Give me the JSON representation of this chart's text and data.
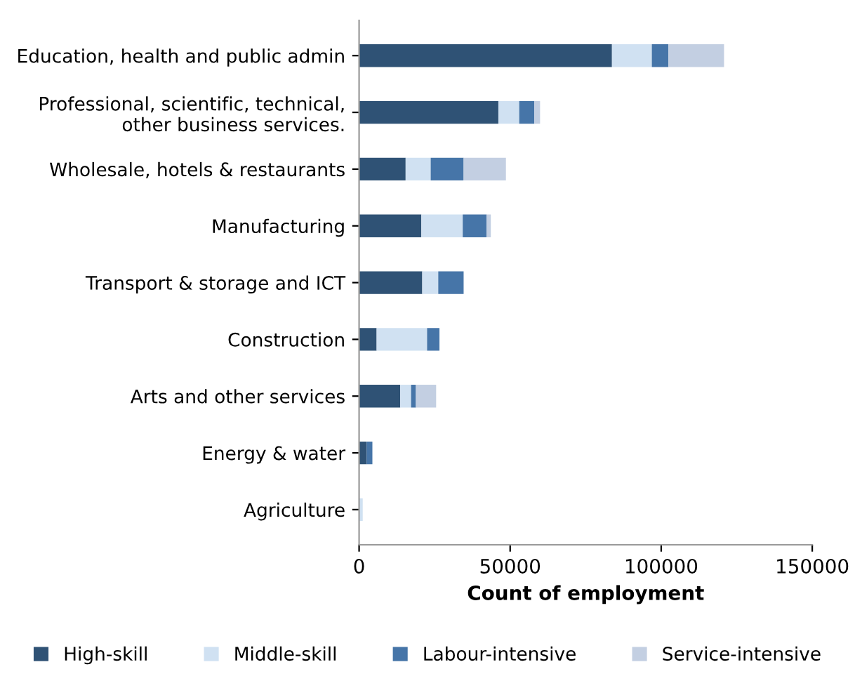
{
  "chart_data": {
    "type": "bar",
    "orientation": "horizontal",
    "stacked": true,
    "xlabel": "Count of employment",
    "categories": [
      "Education, health and public admin",
      "Professional, scientific, technical,\nother business services.",
      "Wholesale, hotels & restaurants",
      "Manufacturing",
      "Transport & storage and ICT",
      "Construction",
      "Arts and other services",
      "Energy & water",
      "Agriculture"
    ],
    "series": [
      {
        "name": "High-skill",
        "color": "#2f5275",
        "values": [
          83700,
          46100,
          15400,
          20600,
          20900,
          5800,
          13600,
          2500,
          null
        ]
      },
      {
        "name": "Middle-skill",
        "color": "#d0e1f2",
        "values": [
          13200,
          6900,
          8300,
          13700,
          5300,
          16700,
          3600,
          null,
          1200
        ]
      },
      {
        "name": "Labour-intensive",
        "color": "#4675a8",
        "values": [
          5500,
          5000,
          10900,
          7900,
          8400,
          4100,
          1600,
          1900,
          null
        ]
      },
      {
        "name": "Service-intensive",
        "color": "#c3cfe2",
        "values": [
          18400,
          1900,
          14000,
          1400,
          null,
          null,
          6700,
          null,
          null
        ]
      }
    ],
    "xlim": [
      0,
      150000
    ],
    "xticks": [
      0,
      50000,
      100000,
      150000
    ],
    "grid": false,
    "legend": "bottom"
  }
}
